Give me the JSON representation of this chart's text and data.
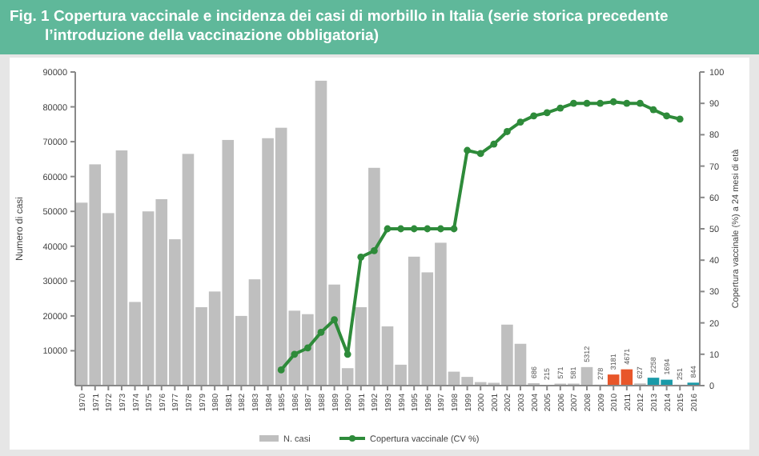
{
  "chart_data": {
    "type": "bar",
    "title": "Fig. 1 Copertura vaccinale e incidenza dei casi di morbillo in Italia (serie storica precedente l’introduzione della vaccinazione obbligatoria)",
    "ylabel": "Numero di casi",
    "y2label": "Copertura vaccinale (%) a 24 mesi di età",
    "categories": [
      "1970",
      "1971",
      "1972",
      "1973",
      "1974",
      "1975",
      "1976",
      "1977",
      "1978",
      "1979",
      "1980",
      "1981",
      "1982",
      "1983",
      "1984",
      "1985",
      "1986",
      "1987",
      "1988",
      "1989",
      "1990",
      "1991",
      "1992",
      "1993",
      "1994",
      "1995",
      "1996",
      "1997",
      "1998",
      "1999",
      "2000",
      "2001",
      "2002",
      "2003",
      "2004",
      "2005",
      "2006",
      "2007",
      "2008",
      "2009",
      "2010",
      "2011",
      "2012",
      "2013",
      "2014",
      "2015",
      "2016"
    ],
    "series": [
      {
        "name": "N. casi",
        "color": "#bfbfbf",
        "colors": [
          "#bfbfbf",
          "#bfbfbf",
          "#bfbfbf",
          "#bfbfbf",
          "#bfbfbf",
          "#bfbfbf",
          "#bfbfbf",
          "#bfbfbf",
          "#bfbfbf",
          "#bfbfbf",
          "#bfbfbf",
          "#bfbfbf",
          "#bfbfbf",
          "#bfbfbf",
          "#bfbfbf",
          "#bfbfbf",
          "#bfbfbf",
          "#bfbfbf",
          "#bfbfbf",
          "#bfbfbf",
          "#bfbfbf",
          "#bfbfbf",
          "#bfbfbf",
          "#bfbfbf",
          "#bfbfbf",
          "#bfbfbf",
          "#bfbfbf",
          "#bfbfbf",
          "#bfbfbf",
          "#bfbfbf",
          "#bfbfbf",
          "#bfbfbf",
          "#bfbfbf",
          "#bfbfbf",
          "#bfbfbf",
          "#bfbfbf",
          "#bfbfbf",
          "#bfbfbf",
          "#bfbfbf",
          "#bfbfbf",
          "#e8562a",
          "#e8562a",
          "#bfbfbf",
          "#1a9aa8",
          "#1a9aa8",
          "#bfbfbf",
          "#1a9aa8"
        ],
        "values": [
          52500,
          63500,
          49500,
          67500,
          24000,
          50000,
          53500,
          42000,
          66500,
          22500,
          27000,
          70500,
          20000,
          30500,
          71000,
          74000,
          21500,
          20500,
          87500,
          29000,
          5000,
          22500,
          62500,
          17000,
          6000,
          37000,
          32500,
          41000,
          4000,
          2500,
          1000,
          800,
          17500,
          12000,
          686,
          215,
          571,
          581,
          5312,
          278,
          3181,
          4671,
          627,
          2258,
          1694,
          251,
          844
        ],
        "value_labels": [
          null,
          null,
          null,
          null,
          null,
          null,
          null,
          null,
          null,
          null,
          null,
          null,
          null,
          null,
          null,
          null,
          null,
          null,
          null,
          null,
          null,
          null,
          null,
          null,
          null,
          null,
          null,
          null,
          null,
          null,
          null,
          null,
          null,
          null,
          "686",
          "215",
          "571",
          "581",
          "5312",
          "278",
          "3181",
          "4671",
          "627",
          "2258",
          "1694",
          "251",
          "844"
        ]
      },
      {
        "name": "Copertura vaccinale (CV %)",
        "type": "line",
        "axis": "y2",
        "color": "#2e8b3a",
        "values": [
          null,
          null,
          null,
          null,
          null,
          null,
          null,
          null,
          null,
          null,
          null,
          null,
          null,
          null,
          null,
          5,
          10,
          12,
          17,
          21,
          10,
          41,
          43,
          50,
          50,
          50,
          50,
          50,
          50,
          75,
          74,
          77,
          81,
          84,
          86,
          87,
          88.5,
          90,
          90,
          90,
          90.5,
          90,
          90,
          88,
          86,
          85,
          null
        ]
      }
    ],
    "ylim": [
      0,
      90000
    ],
    "yticks": [
      10000,
      20000,
      30000,
      40000,
      50000,
      60000,
      70000,
      80000,
      90000
    ],
    "y2lim": [
      0,
      100
    ],
    "y2ticks": [
      0,
      10,
      20,
      30,
      40,
      50,
      60,
      70,
      80,
      90,
      100
    ],
    "marker": "circle",
    "line_style": "solid",
    "legend": "bottom",
    "grid": false
  }
}
